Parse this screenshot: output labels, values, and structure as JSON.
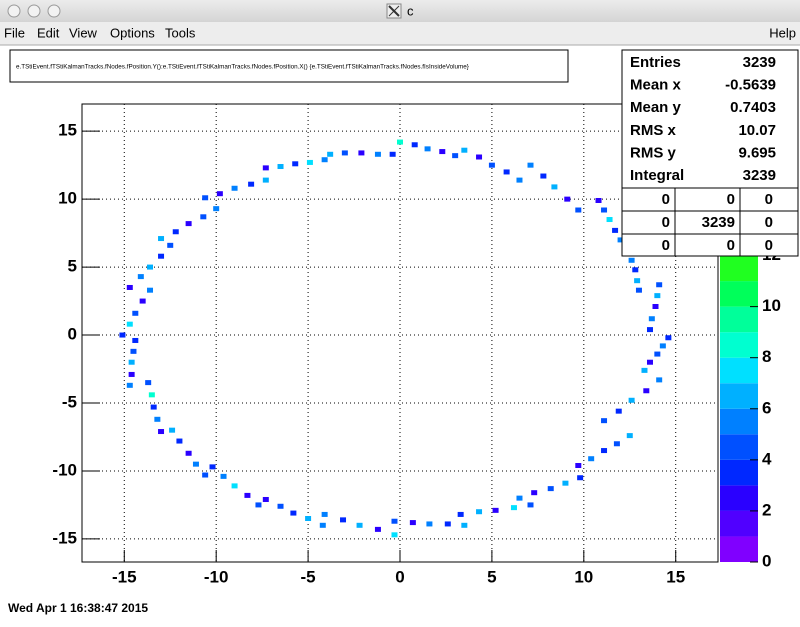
{
  "window": {
    "title": "c"
  },
  "menu": [
    "File",
    "Edit",
    "View",
    "Options",
    "Tools"
  ],
  "help": "Help",
  "status": "Wed Apr  1 16:38:47 2015",
  "chart_data": {
    "type": "hist2d",
    "title": "e.TStiEvent.fTStiKalmanTracks.fNodes.fPosition.Y():e.TStiEvent.fTStiKalmanTracks.fNodes.fPosition.X() {e.TStiEvent.fTStiKalmanTracks.fNodes.fIsInsideVolume}",
    "x": [
      -3.8,
      -3.0,
      -2.1,
      -1.2,
      -0.4,
      -7.3,
      -6.5,
      -5.7,
      -4.9,
      -4.1,
      -10.6,
      -9.8,
      -9.0,
      -8.1,
      -7.3,
      -13.0,
      -12.2,
      -11.5,
      -10.7,
      -10.0,
      -14.7,
      -14.1,
      -13.6,
      -13.0,
      -12.5,
      -15.1,
      -14.7,
      -14.4,
      -14.0,
      -13.6,
      -14.7,
      -14.6,
      -14.6,
      -14.5,
      -14.4,
      -13.7,
      -13.5,
      -13.4,
      -13.2,
      -13.0,
      -12.4,
      -12.0,
      -11.5,
      -11.1,
      -10.6,
      -10.2,
      -9.6,
      -9.0,
      -8.3,
      -7.7,
      -7.3,
      -6.5,
      -5.8,
      -5.0,
      -4.2,
      -4.1,
      -3.1,
      -2.2,
      -1.2,
      -0.3,
      -0.3,
      0.7,
      1.6,
      2.6,
      3.5,
      3.3,
      4.3,
      5.2,
      6.2,
      7.1,
      6.5,
      7.3,
      8.2,
      9.0,
      9.8,
      9.7,
      10.4,
      11.1,
      11.8,
      12.5,
      11.1,
      11.9,
      12.6,
      13.4,
      14.1,
      13.3,
      13.6,
      14.0,
      14.3,
      14.6,
      13.6,
      13.7,
      13.9,
      14.0,
      14.1,
      13.0,
      12.9,
      12.8,
      12.6,
      12.5,
      10.8,
      11.1,
      11.4,
      11.7,
      12.0,
      7.1,
      7.8,
      8.4,
      9.1,
      9.7,
      3.5,
      4.3,
      5.0,
      5.8,
      6.5,
      0.0,
      0.8,
      1.5,
      2.3,
      3.0
    ],
    "y": [
      13.3,
      13.4,
      13.4,
      13.3,
      13.3,
      12.3,
      12.4,
      12.6,
      12.7,
      12.9,
      10.1,
      10.4,
      10.8,
      11.1,
      11.4,
      7.1,
      7.6,
      8.2,
      8.7,
      9.3,
      3.5,
      4.3,
      5.0,
      5.8,
      6.6,
      0.0,
      0.8,
      1.6,
      2.5,
      3.3,
      -3.7,
      -2.9,
      -2.0,
      -1.2,
      -0.4,
      -3.5,
      -4.4,
      -5.3,
      -6.2,
      -7.1,
      -7.0,
      -7.8,
      -8.7,
      -9.5,
      -10.3,
      -9.7,
      -10.4,
      -11.1,
      -11.8,
      -12.5,
      -12.1,
      -12.6,
      -13.1,
      -13.5,
      -14.0,
      -13.2,
      -13.6,
      -14.0,
      -14.3,
      -14.7,
      -13.7,
      -13.8,
      -13.9,
      -13.9,
      -14.0,
      -13.2,
      -13.0,
      -12.9,
      -12.7,
      -12.5,
      -12.0,
      -11.6,
      -11.3,
      -10.9,
      -10.5,
      -9.6,
      -9.1,
      -8.5,
      -8.0,
      -7.4,
      -6.3,
      -5.6,
      -4.8,
      -4.1,
      -3.3,
      -2.6,
      -2.0,
      -1.4,
      -0.8,
      -0.2,
      0.4,
      1.2,
      2.1,
      2.9,
      3.7,
      3.3,
      4.0,
      4.8,
      5.5,
      6.2,
      9.9,
      9.2,
      8.5,
      7.7,
      7.0,
      12.5,
      11.7,
      10.9,
      10.0,
      9.2,
      13.6,
      13.1,
      12.5,
      12.0,
      11.4,
      14.2,
      14.0,
      13.7,
      13.5,
      13.2
    ],
    "values": [
      6,
      4,
      2,
      5,
      3,
      2,
      6,
      3,
      7,
      5,
      4,
      2,
      5,
      3,
      6,
      6,
      3,
      2,
      4,
      5,
      2,
      5,
      6,
      3,
      4,
      3,
      7,
      4,
      2,
      5,
      5,
      2,
      6,
      4,
      3,
      4,
      8,
      3,
      5,
      2,
      6,
      3,
      2,
      5,
      4,
      3,
      5,
      7,
      2,
      4,
      2,
      4,
      3,
      6,
      5,
      5,
      3,
      6,
      2,
      7,
      4,
      2,
      5,
      3,
      6,
      3,
      6,
      2,
      7,
      4,
      5,
      2,
      4,
      6,
      3,
      2,
      5,
      3,
      4,
      6,
      4,
      3,
      6,
      2,
      5,
      6,
      2,
      4,
      5,
      3,
      3,
      5,
      2,
      6,
      4,
      4,
      6,
      3,
      5,
      2,
      2,
      4,
      7,
      3,
      5,
      5,
      3,
      6,
      2,
      4,
      6,
      2,
      4,
      3,
      5,
      8,
      3,
      5,
      2,
      4
    ],
    "xlim": [
      -17.3,
      17.3
    ],
    "ylim": [
      -16.7,
      17.0
    ],
    "xticks": [
      -15,
      -10,
      -5,
      0,
      5,
      10,
      15
    ],
    "yticks": [
      -15,
      -10,
      -5,
      0,
      5,
      10,
      15
    ],
    "zlim": [
      0,
      13
    ],
    "zticks": [
      0,
      2,
      4,
      6,
      8,
      10,
      12
    ],
    "palette": [
      "#8000ff",
      "#5000ff",
      "#2a00ff",
      "#0028ff",
      "#0050ff",
      "#0080ff",
      "#00b0ff",
      "#00e0ff",
      "#00ffd0",
      "#00ff9a",
      "#00ff5a",
      "#20ff20",
      "#60ff00"
    ],
    "grid": true
  },
  "stats": {
    "rows": [
      {
        "label": "Entries",
        "value": 3239
      },
      {
        "label": "Mean x",
        "value": -0.5639
      },
      {
        "label": "Mean y",
        "value": 0.7403
      },
      {
        "label": "RMS x",
        "value": 10.07
      },
      {
        "label": "RMS y",
        "value": 9.695
      },
      {
        "label": "Integral",
        "value": 3239
      }
    ],
    "grid": [
      [
        0,
        0,
        0
      ],
      [
        0,
        3239,
        0
      ],
      [
        0,
        0,
        0
      ]
    ]
  }
}
